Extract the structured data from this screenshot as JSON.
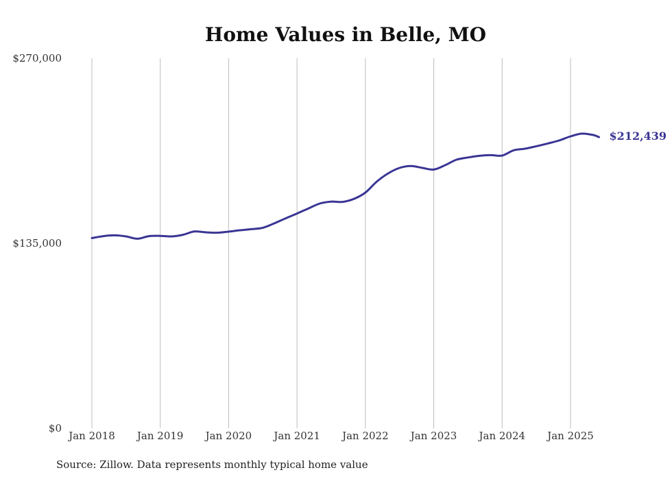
{
  "chart_data": {
    "type": "line",
    "title": "Home Values in Belle, MO",
    "xlabel": "",
    "ylabel": "",
    "x_ticks": [
      "Jan 2018",
      "Jan 2019",
      "Jan 2020",
      "Jan 2021",
      "Jan 2022",
      "Jan 2023",
      "Jan 2024",
      "Jan 2025"
    ],
    "y_ticks": [
      "$0",
      "$135,000",
      "$270,000"
    ],
    "ylim": [
      0,
      270000
    ],
    "xlim": [
      "2018-01",
      "2025-06"
    ],
    "grid": "vertical",
    "legend": "none",
    "series": [
      {
        "color": "#3a3594",
        "end_label": "$212,439",
        "points": [
          [
            "2018-01",
            138800
          ],
          [
            "2018-03",
            140200
          ],
          [
            "2018-05",
            140800
          ],
          [
            "2018-07",
            140000
          ],
          [
            "2018-09",
            138300
          ],
          [
            "2018-11",
            140200
          ],
          [
            "2019-01",
            140400
          ],
          [
            "2019-03",
            140000
          ],
          [
            "2019-05",
            141200
          ],
          [
            "2019-07",
            143600
          ],
          [
            "2019-09",
            143000
          ],
          [
            "2019-11",
            142700
          ],
          [
            "2020-01",
            143500
          ],
          [
            "2020-03",
            144500
          ],
          [
            "2020-05",
            145300
          ],
          [
            "2020-07",
            146300
          ],
          [
            "2020-09",
            149500
          ],
          [
            "2020-11",
            153200
          ],
          [
            "2021-01",
            156700
          ],
          [
            "2021-03",
            160400
          ],
          [
            "2021-05",
            164000
          ],
          [
            "2021-07",
            165400
          ],
          [
            "2021-09",
            165200
          ],
          [
            "2021-11",
            167400
          ],
          [
            "2022-01",
            172000
          ],
          [
            "2022-03",
            180000
          ],
          [
            "2022-05",
            186000
          ],
          [
            "2022-07",
            190000
          ],
          [
            "2022-09",
            191400
          ],
          [
            "2022-11",
            190000
          ],
          [
            "2023-01",
            188800
          ],
          [
            "2023-03",
            192000
          ],
          [
            "2023-05",
            196000
          ],
          [
            "2023-07",
            197600
          ],
          [
            "2023-09",
            198800
          ],
          [
            "2023-11",
            199300
          ],
          [
            "2024-01",
            199000
          ],
          [
            "2024-03",
            202800
          ],
          [
            "2024-05",
            204000
          ],
          [
            "2024-07",
            205800
          ],
          [
            "2024-09",
            207800
          ],
          [
            "2024-11",
            210000
          ],
          [
            "2025-01",
            213000
          ],
          [
            "2025-03",
            215000
          ],
          [
            "2025-05",
            214000
          ],
          [
            "2025-06",
            212439
          ]
        ]
      }
    ]
  },
  "footer": {
    "source": "Source: Zillow. Data represents monthly typical home value"
  }
}
